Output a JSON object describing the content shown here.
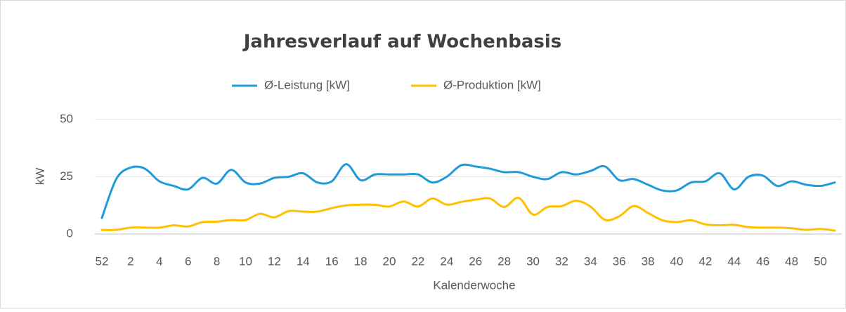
{
  "chart_data": {
    "type": "line",
    "title": "Jahresverlauf auf Wochenbasis",
    "x_label": "Kalenderwoche",
    "y_label": "kW",
    "categories": [
      52,
      null,
      2,
      null,
      4,
      null,
      6,
      null,
      8,
      null,
      10,
      null,
      12,
      null,
      14,
      null,
      16,
      null,
      18,
      null,
      20,
      null,
      22,
      null,
      24,
      null,
      26,
      null,
      28,
      null,
      30,
      null,
      32,
      null,
      34,
      null,
      36,
      null,
      38,
      null,
      40,
      null,
      42,
      null,
      44,
      null,
      46,
      null,
      48,
      null,
      50,
      null
    ],
    "series": [
      {
        "name": "Ø-Leistung [kW]",
        "color": "#1f9bd7",
        "values": [
          7,
          24,
          29,
          28.5,
          23,
          21,
          19.5,
          24.5,
          22,
          28,
          22.5,
          22,
          24.5,
          25,
          26.5,
          22.5,
          23,
          30.5,
          23.5,
          26,
          26,
          26,
          26,
          22.5,
          25,
          30,
          29.5,
          28.5,
          27,
          27,
          25,
          24,
          27,
          26,
          27.5,
          29.5,
          23.5,
          24,
          21.5,
          19,
          19,
          22.5,
          23,
          26.5,
          19.5,
          25,
          25.5,
          21,
          23,
          21.5,
          21,
          22.5
        ]
      },
      {
        "name": "Ø-Produktion [kW]",
        "color": "#ffc000",
        "values": [
          1.8,
          1.8,
          2.8,
          2.8,
          2.8,
          3.8,
          3.3,
          5.2,
          5.4,
          6.1,
          6.1,
          8.8,
          7.3,
          10,
          9.8,
          9.8,
          11.3,
          12.5,
          12.8,
          12.8,
          12,
          14.2,
          12,
          15.5,
          12.8,
          14,
          15,
          15.5,
          11.8,
          15.8,
          8.5,
          11.8,
          12.2,
          14.5,
          12,
          6.2,
          7.7,
          12.2,
          9.2,
          6,
          5.2,
          6,
          4.2,
          3.8,
          4,
          3,
          2.8,
          2.8,
          2.5,
          1.8,
          2.2,
          1.5
        ]
      }
    ],
    "ylim": [
      0,
      50
    ],
    "yticks": [
      0,
      25,
      50
    ],
    "grid": true
  }
}
